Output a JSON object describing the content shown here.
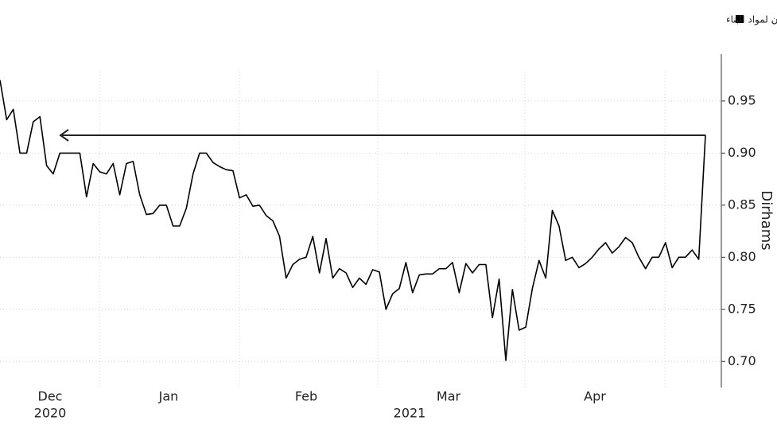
{
  "chart_data": {
    "type": "line",
    "legend": true,
    "ylabel": "Dirhams",
    "month_labels": [
      "Dec",
      "Jan",
      "Feb",
      "Mar",
      "Apr"
    ],
    "year_labels": [
      "2020",
      "2021"
    ],
    "ylim": [
      0.675,
      0.995
    ],
    "yticks": [
      {
        "value": 0.7,
        "label": "0.70"
      },
      {
        "value": 0.75,
        "label": "0.75"
      },
      {
        "value": 0.8,
        "label": "0.80"
      },
      {
        "value": 0.85,
        "label": "0.85"
      },
      {
        "value": 0.9,
        "label": "0.90"
      },
      {
        "value": 0.95,
        "label": "0.95"
      }
    ],
    "grid": true,
    "series": [
      {
        "name": "السعر الأخير لسهم شركة أركان لمواد البناء",
        "color": "#000000",
        "values": [
          0.97,
          0.932,
          0.942,
          0.9,
          0.9,
          0.93,
          0.935,
          0.888,
          0.88,
          0.9,
          0.9,
          0.9,
          0.9,
          0.858,
          0.89,
          0.882,
          0.88,
          0.89,
          0.86,
          0.89,
          0.892,
          0.86,
          0.841,
          0.842,
          0.85,
          0.85,
          0.83,
          0.83,
          0.847,
          0.88,
          0.9,
          0.9,
          0.891,
          0.887,
          0.884,
          0.883,
          0.857,
          0.86,
          0.849,
          0.85,
          0.84,
          0.835,
          0.82,
          0.78,
          0.793,
          0.798,
          0.8,
          0.82,
          0.785,
          0.818,
          0.78,
          0.789,
          0.785,
          0.771,
          0.78,
          0.774,
          0.788,
          0.786,
          0.75,
          0.765,
          0.77,
          0.795,
          0.766,
          0.783,
          0.784,
          0.784,
          0.789,
          0.789,
          0.795,
          0.766,
          0.794,
          0.785,
          0.793,
          0.793,
          0.742,
          0.779,
          0.701,
          0.769,
          0.73,
          0.733,
          0.77,
          0.797,
          0.78,
          0.845,
          0.83,
          0.797,
          0.8,
          0.79,
          0.794,
          0.8,
          0.808,
          0.814,
          0.804,
          0.81,
          0.819,
          0.814,
          0.8,
          0.789,
          0.8,
          0.8,
          0.814,
          0.79,
          0.8,
          0.8,
          0.807,
          0.798,
          0.917
        ]
      }
    ]
  }
}
